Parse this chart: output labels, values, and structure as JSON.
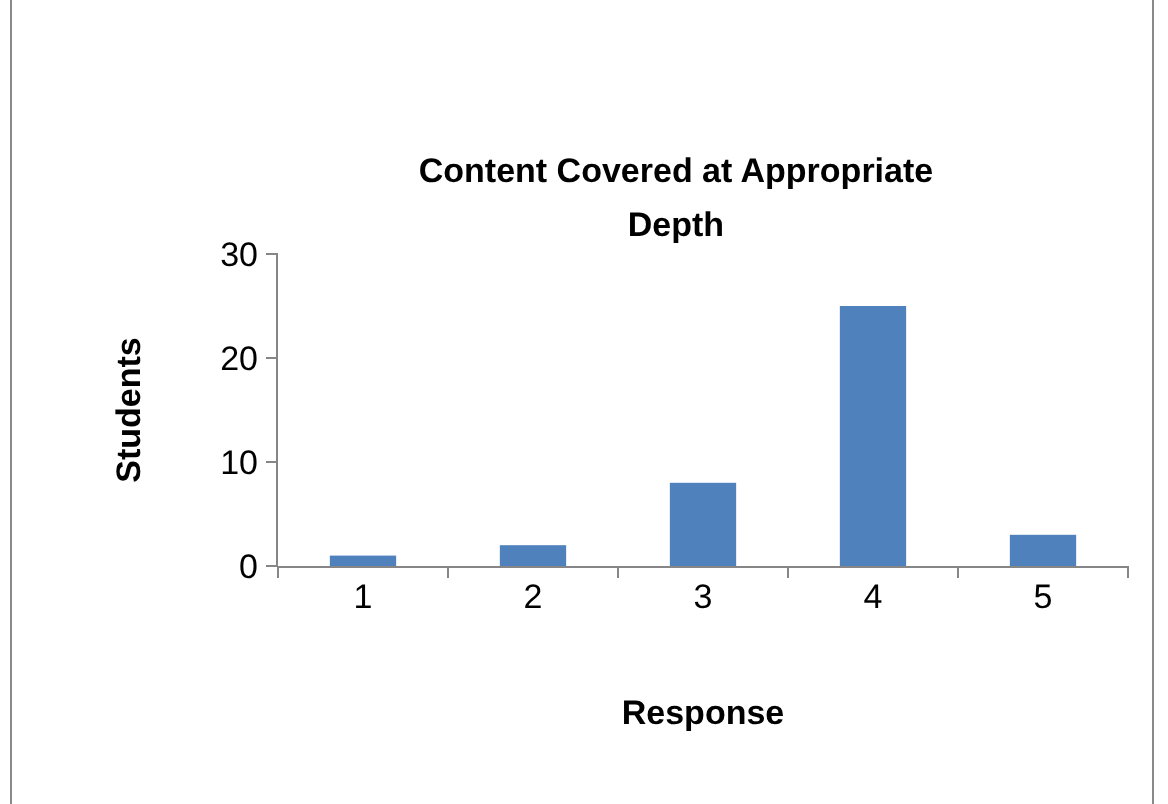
{
  "chart_data": {
    "type": "bar",
    "title": "Content Covered at Appropriate Depth",
    "xlabel": "Response",
    "ylabel": "Students",
    "categories": [
      "1",
      "2",
      "3",
      "4",
      "5"
    ],
    "values": [
      1,
      2,
      8,
      25,
      3
    ],
    "color": "#4f81bd",
    "ylim": [
      0,
      30
    ],
    "yticks": [
      0,
      10,
      20,
      30
    ],
    "grid": false
  }
}
